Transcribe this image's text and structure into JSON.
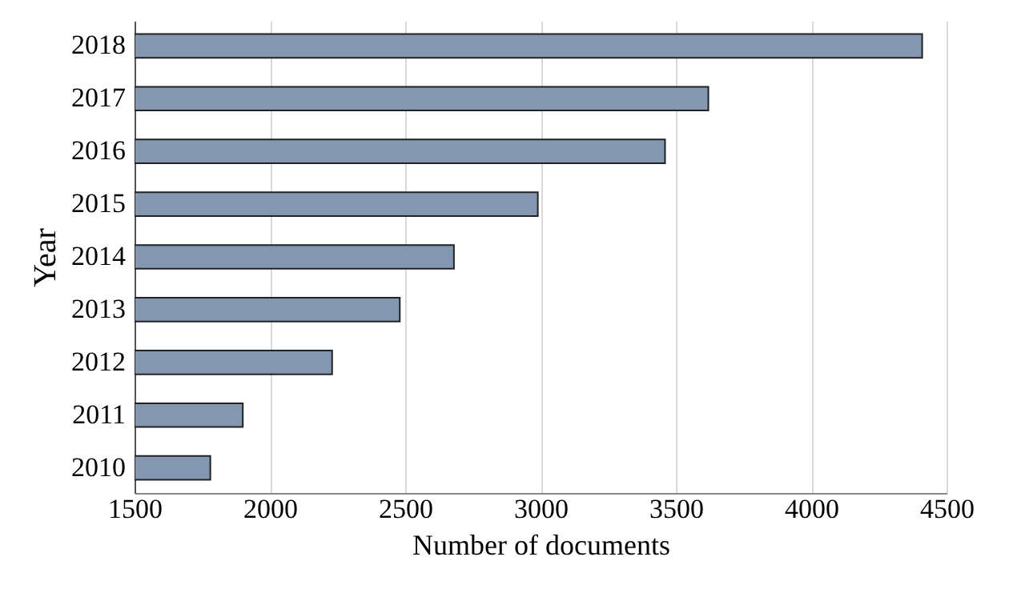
{
  "chart_data": {
    "type": "bar",
    "orientation": "horizontal",
    "xlabel": "Number of documents",
    "ylabel": "Year",
    "categories": [
      "2018",
      "2017",
      "2016",
      "2015",
      "2014",
      "2013",
      "2012",
      "2011",
      "2010"
    ],
    "values": [
      4410,
      3620,
      3460,
      2990,
      2680,
      2480,
      2230,
      1900,
      1780
    ],
    "color": "#8497b0",
    "xlim": [
      1500,
      4500
    ],
    "xticks": [
      1500,
      2000,
      2500,
      3000,
      3500,
      4000,
      4500
    ],
    "grid": "x"
  }
}
